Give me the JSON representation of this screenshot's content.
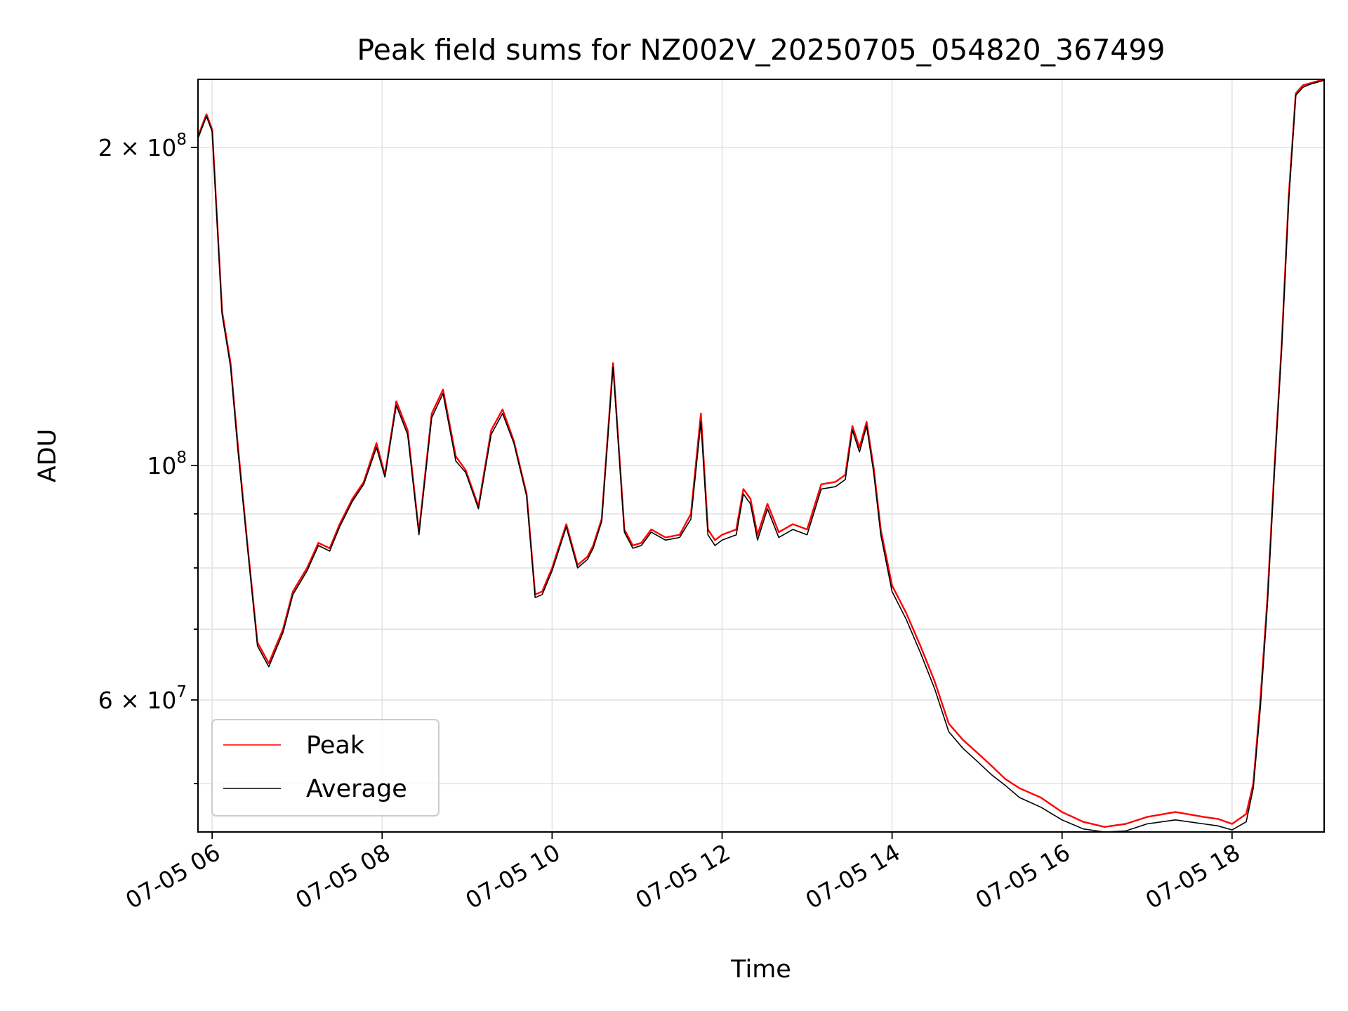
{
  "chart_data": {
    "type": "line",
    "title": "Peak field sums for NZ002V_20250705_054820_367499",
    "xlabel": "Time",
    "ylabel": "ADU",
    "yscale": "log",
    "grid": true,
    "legend_position": "lower-left",
    "xlim": [
      "2025-07-05 05:50",
      "2025-07-05 19:05"
    ],
    "ylim": [
      45000000,
      232000000
    ],
    "x_ticks": [
      {
        "value": "2025-07-05 06:00",
        "label": "07-05 06"
      },
      {
        "value": "2025-07-05 08:00",
        "label": "07-05 08"
      },
      {
        "value": "2025-07-05 10:00",
        "label": "07-05 10"
      },
      {
        "value": "2025-07-05 12:00",
        "label": "07-05 12"
      },
      {
        "value": "2025-07-05 14:00",
        "label": "07-05 14"
      },
      {
        "value": "2025-07-05 16:00",
        "label": "07-05 16"
      },
      {
        "value": "2025-07-05 18:00",
        "label": "07-05 18"
      }
    ],
    "y_ticks": [
      {
        "value": 60000000,
        "label": "6 × 10",
        "exp": "7"
      },
      {
        "value": 100000000,
        "label": "10",
        "exp": "8"
      },
      {
        "value": 200000000,
        "label": "2 × 10",
        "exp": "8"
      }
    ],
    "y_minor_ticks": [
      50000000,
      70000000,
      80000000,
      90000000
    ],
    "series": [
      {
        "name": "Peak",
        "color": "#ff0000",
        "x": [
          "2025-07-05 05:50",
          "2025-07-05 05:56",
          "2025-07-05 06:00",
          "2025-07-05 06:07",
          "2025-07-05 06:13",
          "2025-07-05 06:18",
          "2025-07-05 06:25",
          "2025-07-05 06:32",
          "2025-07-05 06:40",
          "2025-07-05 06:50",
          "2025-07-05 06:57",
          "2025-07-05 07:07",
          "2025-07-05 07:15",
          "2025-07-05 07:23",
          "2025-07-05 07:30",
          "2025-07-05 07:39",
          "2025-07-05 07:47",
          "2025-07-05 07:56",
          "2025-07-05 08:02",
          "2025-07-05 08:10",
          "2025-07-05 08:18",
          "2025-07-05 08:26",
          "2025-07-05 08:35",
          "2025-07-05 08:43",
          "2025-07-05 08:52",
          "2025-07-05 08:59",
          "2025-07-05 09:08",
          "2025-07-05 09:17",
          "2025-07-05 09:25",
          "2025-07-05 09:33",
          "2025-07-05 09:42",
          "2025-07-05 09:48",
          "2025-07-05 09:53",
          "2025-07-05 10:00",
          "2025-07-05 10:10",
          "2025-07-05 10:18",
          "2025-07-05 10:25",
          "2025-07-05 10:29",
          "2025-07-05 10:35",
          "2025-07-05 10:43",
          "2025-07-05 10:51",
          "2025-07-05 10:57",
          "2025-07-05 11:03",
          "2025-07-05 11:10",
          "2025-07-05 11:20",
          "2025-07-05 11:30",
          "2025-07-05 11:38",
          "2025-07-05 11:45",
          "2025-07-05 11:50",
          "2025-07-05 11:55",
          "2025-07-05 12:00",
          "2025-07-05 12:05",
          "2025-07-05 12:10",
          "2025-07-05 12:15",
          "2025-07-05 12:20",
          "2025-07-05 12:25",
          "2025-07-05 12:32",
          "2025-07-05 12:40",
          "2025-07-05 12:50",
          "2025-07-05 13:00",
          "2025-07-05 13:10",
          "2025-07-05 13:20",
          "2025-07-05 13:27",
          "2025-07-05 13:32",
          "2025-07-05 13:37",
          "2025-07-05 13:42",
          "2025-07-05 13:47",
          "2025-07-05 13:52",
          "2025-07-05 14:00",
          "2025-07-05 14:10",
          "2025-07-05 14:20",
          "2025-07-05 14:30",
          "2025-07-05 14:40",
          "2025-07-05 14:50",
          "2025-07-05 15:00",
          "2025-07-05 15:10",
          "2025-07-05 15:20",
          "2025-07-05 15:30",
          "2025-07-05 15:45",
          "2025-07-05 16:00",
          "2025-07-05 16:15",
          "2025-07-05 16:30",
          "2025-07-05 16:45",
          "2025-07-05 17:00",
          "2025-07-05 17:20",
          "2025-07-05 17:40",
          "2025-07-05 17:50",
          "2025-07-05 18:00",
          "2025-07-05 18:10",
          "2025-07-05 18:15",
          "2025-07-05 18:20",
          "2025-07-05 18:25",
          "2025-07-05 18:30",
          "2025-07-05 18:35",
          "2025-07-05 18:40",
          "2025-07-05 18:45",
          "2025-07-05 18:50",
          "2025-07-05 18:55",
          "2025-07-05 19:00",
          "2025-07-05 19:05"
        ],
        "y": [
          205000000,
          215000000,
          208000000,
          140000000,
          125000000,
          105000000,
          84000000,
          68000000,
          65000000,
          70000000,
          76000000,
          80000000,
          84500000,
          83500000,
          88000000,
          93000000,
          96500000,
          105000000,
          98000000,
          115000000,
          108000000,
          86500000,
          112000000,
          118000000,
          102000000,
          99000000,
          91500000,
          108000000,
          113000000,
          105500000,
          94000000,
          75500000,
          76000000,
          80000000,
          88000000,
          80500000,
          82000000,
          84000000,
          89000000,
          125000000,
          87000000,
          84000000,
          84500000,
          87000000,
          85500000,
          86000000,
          90000000,
          112000000,
          87000000,
          85000000,
          86000000,
          86500000,
          87000000,
          95000000,
          93000000,
          86000000,
          92000000,
          86500000,
          88000000,
          87000000,
          96000000,
          96500000,
          98000000,
          109000000,
          104000000,
          110000000,
          99500000,
          87000000,
          77000000,
          72500000,
          67500000,
          62500000,
          57000000,
          55000000,
          53500000,
          52000000,
          50500000,
          49500000,
          48500000,
          47000000,
          46000000,
          45500000,
          45800000,
          46500000,
          47000000,
          46500000,
          46300000,
          45800000,
          46800000,
          50000000,
          60000000,
          75000000,
          100000000,
          130000000,
          180000000,
          225000000,
          229000000,
          230000000,
          231000000,
          232000000
        ]
      },
      {
        "name": "Average",
        "color": "#000000",
        "x": [
          "2025-07-05 05:50",
          "2025-07-05 05:56",
          "2025-07-05 06:00",
          "2025-07-05 06:07",
          "2025-07-05 06:13",
          "2025-07-05 06:18",
          "2025-07-05 06:25",
          "2025-07-05 06:32",
          "2025-07-05 06:40",
          "2025-07-05 06:50",
          "2025-07-05 06:57",
          "2025-07-05 07:07",
          "2025-07-05 07:15",
          "2025-07-05 07:23",
          "2025-07-05 07:30",
          "2025-07-05 07:39",
          "2025-07-05 07:47",
          "2025-07-05 07:56",
          "2025-07-05 08:02",
          "2025-07-05 08:10",
          "2025-07-05 08:18",
          "2025-07-05 08:26",
          "2025-07-05 08:35",
          "2025-07-05 08:43",
          "2025-07-05 08:52",
          "2025-07-05 08:59",
          "2025-07-05 09:08",
          "2025-07-05 09:17",
          "2025-07-05 09:25",
          "2025-07-05 09:33",
          "2025-07-05 09:42",
          "2025-07-05 09:48",
          "2025-07-05 09:53",
          "2025-07-05 10:00",
          "2025-07-05 10:10",
          "2025-07-05 10:18",
          "2025-07-05 10:25",
          "2025-07-05 10:29",
          "2025-07-05 10:35",
          "2025-07-05 10:43",
          "2025-07-05 10:51",
          "2025-07-05 10:57",
          "2025-07-05 11:03",
          "2025-07-05 11:10",
          "2025-07-05 11:20",
          "2025-07-05 11:30",
          "2025-07-05 11:38",
          "2025-07-05 11:45",
          "2025-07-05 11:50",
          "2025-07-05 11:55",
          "2025-07-05 12:00",
          "2025-07-05 12:05",
          "2025-07-05 12:10",
          "2025-07-05 12:15",
          "2025-07-05 12:20",
          "2025-07-05 12:25",
          "2025-07-05 12:32",
          "2025-07-05 12:40",
          "2025-07-05 12:50",
          "2025-07-05 13:00",
          "2025-07-05 13:10",
          "2025-07-05 13:20",
          "2025-07-05 13:27",
          "2025-07-05 13:32",
          "2025-07-05 13:37",
          "2025-07-05 13:42",
          "2025-07-05 13:47",
          "2025-07-05 13:52",
          "2025-07-05 14:00",
          "2025-07-05 14:10",
          "2025-07-05 14:20",
          "2025-07-05 14:30",
          "2025-07-05 14:40",
          "2025-07-05 14:50",
          "2025-07-05 15:00",
          "2025-07-05 15:10",
          "2025-07-05 15:20",
          "2025-07-05 15:30",
          "2025-07-05 15:45",
          "2025-07-05 16:00",
          "2025-07-05 16:15",
          "2025-07-05 16:30",
          "2025-07-05 16:45",
          "2025-07-05 17:00",
          "2025-07-05 17:20",
          "2025-07-05 17:40",
          "2025-07-05 17:50",
          "2025-07-05 18:00",
          "2025-07-05 18:10",
          "2025-07-05 18:15",
          "2025-07-05 18:20",
          "2025-07-05 18:25",
          "2025-07-05 18:30",
          "2025-07-05 18:35",
          "2025-07-05 18:40",
          "2025-07-05 18:45",
          "2025-07-05 18:50",
          "2025-07-05 18:55",
          "2025-07-05 19:00",
          "2025-07-05 19:05"
        ],
        "y": [
          204000000,
          214000000,
          207000000,
          139000000,
          124000000,
          104000000,
          83500000,
          67500000,
          64500000,
          69500000,
          75500000,
          79500000,
          84000000,
          83000000,
          87500000,
          92500000,
          96000000,
          104000000,
          97500000,
          114000000,
          107000000,
          86000000,
          111000000,
          117000000,
          101000000,
          98500000,
          91000000,
          107000000,
          112000000,
          105000000,
          93500000,
          75000000,
          75500000,
          79500000,
          87500000,
          80000000,
          81500000,
          83500000,
          88500000,
          124000000,
          86500000,
          83500000,
          84000000,
          86500000,
          85000000,
          85500000,
          89000000,
          110000000,
          86000000,
          84000000,
          85000000,
          85500000,
          86000000,
          94000000,
          92000000,
          85000000,
          91000000,
          85500000,
          87000000,
          86000000,
          95000000,
          95500000,
          97000000,
          108000000,
          103000000,
          109000000,
          98500000,
          86000000,
          76000000,
          71500000,
          66500000,
          61500000,
          56000000,
          54000000,
          52500000,
          51000000,
          49800000,
          48500000,
          47500000,
          46200000,
          45300000,
          45000000,
          45100000,
          45800000,
          46200000,
          45800000,
          45600000,
          45200000,
          46000000,
          49500000,
          59000000,
          74000000,
          99000000,
          129000000,
          178000000,
          224000000,
          228000000,
          229500000,
          230500000,
          231500000
        ]
      }
    ]
  }
}
